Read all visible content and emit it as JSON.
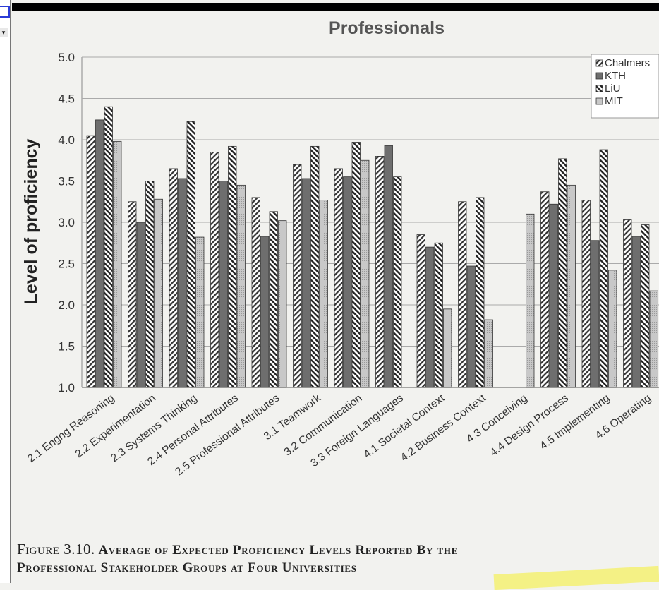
{
  "chart_data": {
    "type": "bar",
    "title": "Professionals",
    "ylabel": "Level of proficiency",
    "xlabel": "",
    "ylim": [
      1.0,
      5.0
    ],
    "yticks": [
      1.0,
      1.5,
      2.0,
      2.5,
      3.0,
      3.5,
      4.0,
      4.5,
      5.0
    ],
    "grid": true,
    "legend_position": "top-right",
    "categories": [
      "2.1 Engng Reasoning",
      "2.2 Experimentation",
      "2.3 Systems Thinking",
      "2.4 Personal Attributes",
      "2.5 Professional Attributes",
      "3.1 Teamwork",
      "3.2 Communication",
      "3.3 Foreign Languages",
      "4.1 Societal Context",
      "4.2 Business Context",
      "4.3 Conceiving",
      "4.4 Design Process",
      "4.5 Implementing",
      "4.6 Operating"
    ],
    "series": [
      {
        "name": "Chalmers",
        "pattern": "hatch-forward",
        "values": [
          4.05,
          3.25,
          3.65,
          3.85,
          3.3,
          3.7,
          3.65,
          3.8,
          2.85,
          3.25,
          null,
          3.37,
          3.27,
          3.03
        ]
      },
      {
        "name": "KTH",
        "pattern": "solid-gray",
        "values": [
          4.24,
          3.0,
          3.53,
          3.5,
          2.83,
          3.53,
          3.55,
          3.93,
          2.7,
          2.47,
          null,
          3.22,
          2.78,
          2.83
        ]
      },
      {
        "name": "LiU",
        "pattern": "hatch-back",
        "values": [
          4.4,
          3.5,
          4.22,
          3.92,
          3.13,
          3.92,
          3.97,
          3.55,
          2.75,
          3.3,
          null,
          3.77,
          3.88,
          2.97
        ]
      },
      {
        "name": "MIT",
        "pattern": "light-dotted",
        "values": [
          3.98,
          3.28,
          2.82,
          3.45,
          3.02,
          3.27,
          3.75,
          null,
          1.95,
          1.82,
          3.1,
          3.45,
          2.42,
          2.17
        ]
      }
    ]
  },
  "caption": {
    "label": "Figure 3.10.",
    "text_line1": "Average of Expected Proficiency Levels Reported By the",
    "text_line2": "Professional Stakeholder Groups at Four Universities"
  },
  "left_pane": {
    "dropdown_icon": "chevron-down-icon"
  }
}
